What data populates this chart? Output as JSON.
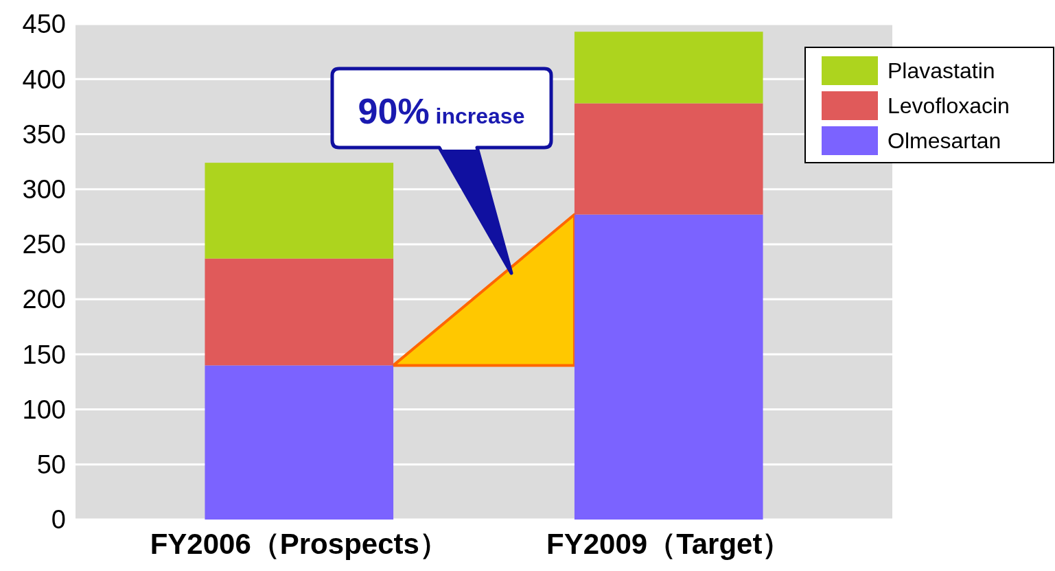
{
  "chart_data": {
    "type": "bar",
    "stacked": true,
    "categories": [
      "FY2006（Prospects）",
      "FY2009（Target）"
    ],
    "series": [
      {
        "name": "Olmesartan",
        "color": "#7b63ff",
        "values": [
          140,
          277
        ]
      },
      {
        "name": "Levofloxacin",
        "color": "#e05a5a",
        "values": [
          97,
          101
        ]
      },
      {
        "name": "Plavastatin",
        "color": "#add41e",
        "values": [
          87,
          65
        ]
      }
    ],
    "ylim": [
      0,
      450
    ],
    "yticks": [
      0,
      50,
      100,
      150,
      200,
      250,
      300,
      350,
      400,
      450
    ],
    "grid": "y",
    "legend": "top right",
    "annotations": [
      "90% increase"
    ]
  }
}
